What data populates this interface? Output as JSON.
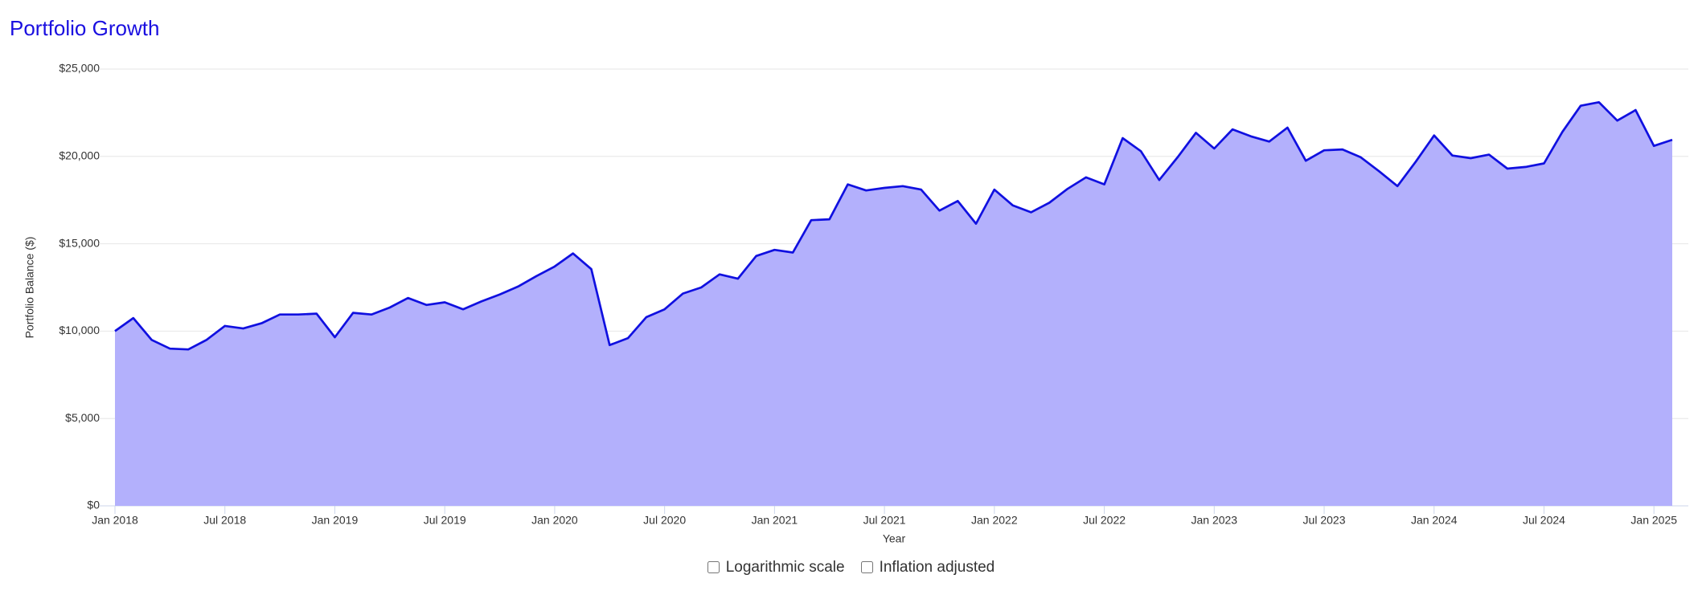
{
  "chart_data": {
    "type": "area",
    "title": "Portfolio Growth",
    "xlabel": "Year",
    "ylabel": "Portfolio Balance ($)",
    "x": [
      "2018-01",
      "2018-02",
      "2018-03",
      "2018-04",
      "2018-05",
      "2018-06",
      "2018-07",
      "2018-08",
      "2018-09",
      "2018-10",
      "2018-11",
      "2018-12",
      "2019-01",
      "2019-02",
      "2019-03",
      "2019-04",
      "2019-05",
      "2019-06",
      "2019-07",
      "2019-08",
      "2019-09",
      "2019-10",
      "2019-11",
      "2019-12",
      "2020-01",
      "2020-02",
      "2020-03",
      "2020-04",
      "2020-05",
      "2020-06",
      "2020-07",
      "2020-08",
      "2020-09",
      "2020-10",
      "2020-11",
      "2020-12",
      "2021-01",
      "2021-02",
      "2021-03",
      "2021-04",
      "2021-05",
      "2021-06",
      "2021-07",
      "2021-08",
      "2021-09",
      "2021-10",
      "2021-11",
      "2021-12",
      "2022-01",
      "2022-02",
      "2022-03",
      "2022-04",
      "2022-05",
      "2022-06",
      "2022-07",
      "2022-08",
      "2022-09",
      "2022-10",
      "2022-11",
      "2022-12",
      "2023-01",
      "2023-02",
      "2023-03",
      "2023-04",
      "2023-05",
      "2023-06",
      "2023-07",
      "2023-08",
      "2023-09",
      "2023-10",
      "2023-11",
      "2023-12",
      "2024-01",
      "2024-02",
      "2024-03",
      "2024-04",
      "2024-05",
      "2024-06",
      "2024-07",
      "2024-08",
      "2024-09",
      "2024-10",
      "2024-11",
      "2024-12",
      "2025-01",
      "2025-02"
    ],
    "series": [
      {
        "name": "Portfolio Balance",
        "color": "#1010e0",
        "fill": "#b3b0fc",
        "values": [
          10000,
          10750,
          9500,
          9000,
          8950,
          9500,
          10300,
          10150,
          10450,
          10950,
          10950,
          11000,
          9650,
          11050,
          10950,
          11350,
          11900,
          11500,
          11650,
          11250,
          11700,
          12100,
          12550,
          13150,
          13700,
          14450,
          13550,
          9200,
          9600,
          10800,
          11250,
          12150,
          12500,
          13250,
          13000,
          14300,
          14650,
          14500,
          16350,
          16400,
          18400,
          18050,
          18200,
          18300,
          18100,
          16900,
          17450,
          16150,
          18100,
          17200,
          16800,
          17350,
          18150,
          18800,
          18400,
          21050,
          20300,
          18650,
          19950,
          21350,
          20450,
          21550,
          21150,
          20850,
          21650,
          19750,
          20350,
          20400,
          19950,
          19150,
          18300,
          19700,
          21200,
          20050,
          19900,
          20100,
          19300,
          19400,
          19600,
          21400,
          22900,
          23100,
          22050,
          22650,
          20600,
          20950
        ]
      }
    ],
    "xlim": [
      "2018-01",
      "2025-02"
    ],
    "xticks": [
      {
        "value": "2018-01",
        "label": "Jan 2018"
      },
      {
        "value": "2018-07",
        "label": "Jul 2018"
      },
      {
        "value": "2019-01",
        "label": "Jan 2019"
      },
      {
        "value": "2019-07",
        "label": "Jul 2019"
      },
      {
        "value": "2020-01",
        "label": "Jan 2020"
      },
      {
        "value": "2020-07",
        "label": "Jul 2020"
      },
      {
        "value": "2021-01",
        "label": "Jan 2021"
      },
      {
        "value": "2021-07",
        "label": "Jul 2021"
      },
      {
        "value": "2022-01",
        "label": "Jan 2022"
      },
      {
        "value": "2022-07",
        "label": "Jul 2022"
      },
      {
        "value": "2023-01",
        "label": "Jan 2023"
      },
      {
        "value": "2023-07",
        "label": "Jul 2023"
      },
      {
        "value": "2024-01",
        "label": "Jan 2024"
      },
      {
        "value": "2024-07",
        "label": "Jul 2024"
      },
      {
        "value": "2025-01",
        "label": "Jan 2025"
      }
    ],
    "ylim": [
      0,
      25000
    ],
    "yticks": [
      {
        "value": 0,
        "label": "$0"
      },
      {
        "value": 5000,
        "label": "$5,000"
      },
      {
        "value": 10000,
        "label": "$10,000"
      },
      {
        "value": 15000,
        "label": "$15,000"
      },
      {
        "value": 20000,
        "label": "$20,000"
      },
      {
        "value": 25000,
        "label": "$25,000"
      }
    ],
    "grid": true,
    "log_scale": false,
    "controls": [
      {
        "label": "Logarithmic scale",
        "checked": false
      },
      {
        "label": "Inflation adjusted",
        "checked": false
      }
    ]
  }
}
